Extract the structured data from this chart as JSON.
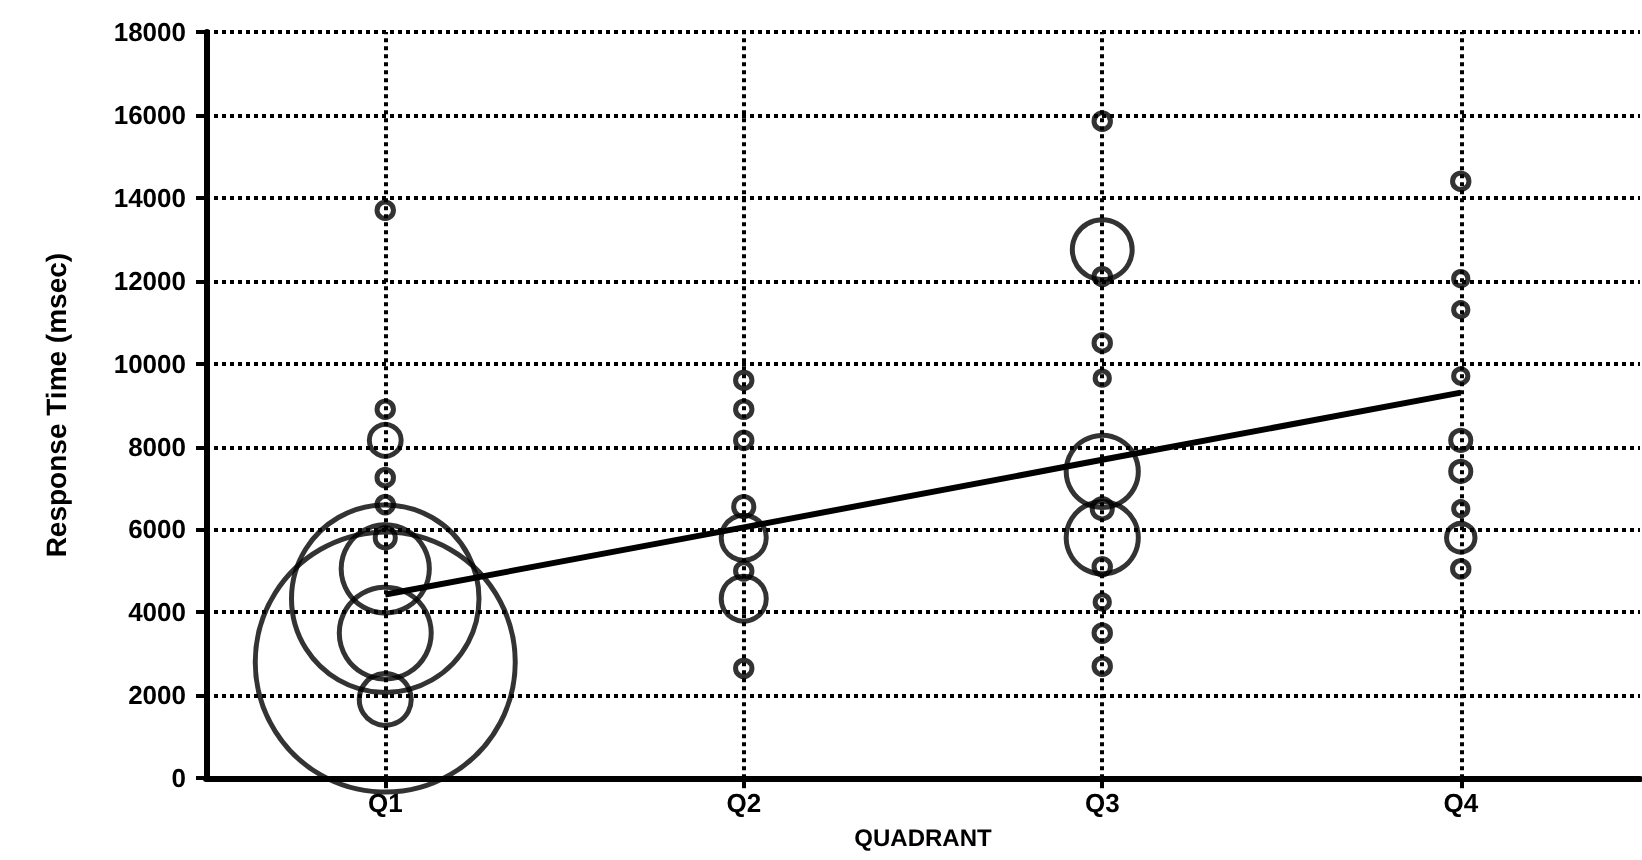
{
  "chart_data": {
    "type": "bubble",
    "xlabel": "QUADRANT",
    "ylabel": "Response Time (msec)",
    "categories": [
      "Q1",
      "Q2",
      "Q3",
      "Q4"
    ],
    "ylim": [
      0,
      18000
    ],
    "yticks": [
      0,
      2000,
      4000,
      6000,
      8000,
      10000,
      12000,
      14000,
      16000,
      18000
    ],
    "grid": true,
    "series": [
      {
        "color": "#000000",
        "marker": "circle",
        "x": [
          "Q1",
          "Q1",
          "Q1",
          "Q1",
          "Q1",
          "Q1",
          "Q1",
          "Q1",
          "Q1",
          "Q1",
          "Q1",
          "Q2",
          "Q2",
          "Q2",
          "Q2",
          "Q2",
          "Q2",
          "Q2",
          "Q2",
          "Q3",
          "Q3",
          "Q3",
          "Q3",
          "Q3",
          "Q3",
          "Q3",
          "Q3",
          "Q3",
          "Q3",
          "Q3",
          "Q3",
          "Q4",
          "Q4",
          "Q4",
          "Q4",
          "Q4",
          "Q4",
          "Q4",
          "Q4",
          "Q4"
        ],
        "values": [
          13700,
          8900,
          8150,
          7250,
          6600,
          5800,
          4330,
          2800,
          5050,
          3500,
          1900,
          9600,
          8900,
          8150,
          6550,
          5800,
          5000,
          4330,
          2650,
          15850,
          12750,
          12100,
          10500,
          9650,
          7400,
          6500,
          5800,
          5100,
          4250,
          3500,
          2700,
          14400,
          12050,
          11300,
          9700,
          8150,
          7400,
          6500,
          5800,
          5050
        ],
        "sizes": [
          0.004,
          0.004,
          0.015,
          0.004,
          0.004,
          0.006,
          0.52,
          1,
          0.115,
          0.125,
          0.04,
          0.004,
          0.004,
          0.004,
          0.006,
          0.03,
          0.004,
          0.03,
          0.004,
          0.004,
          0.053,
          0.004,
          0.004,
          0.003,
          0.077,
          0.006,
          0.077,
          0.004,
          0.003,
          0.004,
          0.004,
          0.004,
          0.003,
          0.003,
          0.003,
          0.006,
          0.006,
          0.003,
          0.012,
          0.004
        ]
      },
      {
        "type": "line",
        "color": "#000000",
        "marker": "none",
        "values": [
          4430,
          6050,
          7680,
          9300
        ]
      }
    ]
  }
}
